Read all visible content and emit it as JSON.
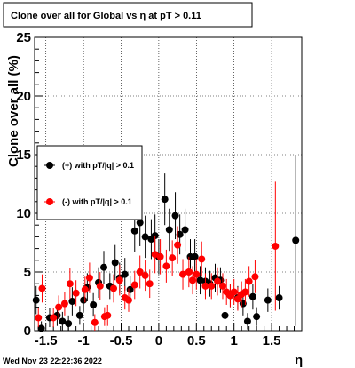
{
  "title": "Clone  over all for Global vs  η at pT > 0.11",
  "timestamp": "Wed Nov 23 22:22:36 2022",
  "chart_data": {
    "type": "scatter",
    "title": "Clone  over all for Global vs  η at pT > 0.11",
    "xlabel": "η",
    "ylabel": "Clone  over all (%)",
    "xlim": [
      -1.65,
      1.9
    ],
    "ylim": [
      0,
      25
    ],
    "x_ticks": [
      -1.5,
      -1,
      -0.5,
      0,
      0.5,
      1,
      1.5
    ],
    "x_tick_labels": [
      "-1.5",
      "-1",
      "-0.5",
      "0",
      "0.5",
      "1",
      "1.5"
    ],
    "y_ticks": [
      0,
      5,
      10,
      15,
      20,
      25
    ],
    "y_tick_labels": [
      "0",
      "5",
      "10",
      "15",
      "20",
      "25"
    ],
    "grid": true,
    "legend_position": "left-middle",
    "series": [
      {
        "name": "(+) with pT/|q| > 0.1",
        "color": "#000000",
        "points": [
          {
            "x": -1.63,
            "y": 2.6,
            "err": 1.2
          },
          {
            "x": -1.56,
            "y": 0.2,
            "err": 0.6
          },
          {
            "x": -1.45,
            "y": 1.1,
            "err": 0.8
          },
          {
            "x": -1.35,
            "y": 1.3,
            "err": 0.9
          },
          {
            "x": -1.28,
            "y": 0.8,
            "err": 0.8
          },
          {
            "x": -1.2,
            "y": 0.6,
            "err": 0.7
          },
          {
            "x": -1.15,
            "y": 2.5,
            "err": 1.2
          },
          {
            "x": -1.05,
            "y": 1.3,
            "err": 0.8
          },
          {
            "x": -1.0,
            "y": 2.6,
            "err": 1.0
          },
          {
            "x": -0.95,
            "y": 3.7,
            "err": 1.2
          },
          {
            "x": -0.87,
            "y": 2.2,
            "err": 1.0
          },
          {
            "x": -0.8,
            "y": 4.1,
            "err": 1.3
          },
          {
            "x": -0.73,
            "y": 5.4,
            "err": 1.4
          },
          {
            "x": -0.65,
            "y": 3.8,
            "err": 1.1
          },
          {
            "x": -0.58,
            "y": 5.8,
            "err": 1.5
          },
          {
            "x": -0.52,
            "y": 4.5,
            "err": 1.3
          },
          {
            "x": -0.45,
            "y": 4.8,
            "err": 1.4
          },
          {
            "x": -0.38,
            "y": 3.5,
            "err": 1.2
          },
          {
            "x": -0.32,
            "y": 8.5,
            "err": 1.8
          },
          {
            "x": -0.25,
            "y": 9.2,
            "err": 2.0
          },
          {
            "x": -0.18,
            "y": 8.0,
            "err": 1.8
          },
          {
            "x": -0.1,
            "y": 7.8,
            "err": 1.7
          },
          {
            "x": -0.05,
            "y": 8.1,
            "err": 1.8
          },
          {
            "x": 0.0,
            "y": 6.3,
            "err": 1.5
          },
          {
            "x": 0.08,
            "y": 11.2,
            "err": 2.2
          },
          {
            "x": 0.14,
            "y": 8.6,
            "err": 1.8
          },
          {
            "x": 0.22,
            "y": 9.8,
            "err": 2.0
          },
          {
            "x": 0.28,
            "y": 8.2,
            "err": 1.7
          },
          {
            "x": 0.35,
            "y": 8.6,
            "err": 1.8
          },
          {
            "x": 0.42,
            "y": 6.3,
            "err": 1.5
          },
          {
            "x": 0.48,
            "y": 6.3,
            "err": 1.5
          },
          {
            "x": 0.55,
            "y": 4.3,
            "err": 1.2
          },
          {
            "x": 0.62,
            "y": 4.2,
            "err": 1.2
          },
          {
            "x": 0.68,
            "y": 4.0,
            "err": 1.1
          },
          {
            "x": 0.75,
            "y": 4.5,
            "err": 1.2
          },
          {
            "x": 0.82,
            "y": 4.3,
            "err": 1.1
          },
          {
            "x": 0.88,
            "y": 1.3,
            "err": 0.9
          },
          {
            "x": 0.95,
            "y": 3.0,
            "err": 1.0
          },
          {
            "x": 1.05,
            "y": 2.8,
            "err": 1.0
          },
          {
            "x": 1.12,
            "y": 2.3,
            "err": 1.0
          },
          {
            "x": 1.18,
            "y": 0.8,
            "err": 0.7
          },
          {
            "x": 1.25,
            "y": 2.9,
            "err": 1.1
          },
          {
            "x": 1.3,
            "y": 1.2,
            "err": 0.8
          },
          {
            "x": 1.45,
            "y": 2.6,
            "err": 1.0
          },
          {
            "x": 1.6,
            "y": 2.8,
            "err": 1.0
          },
          {
            "x": 1.82,
            "y": 7.7,
            "err": 7.3
          }
        ]
      },
      {
        "name": "(-) with pT/|q| > 0.1",
        "color": "#ff0000",
        "points": [
          {
            "x": -1.6,
            "y": 1.1,
            "err": 0.8
          },
          {
            "x": -1.55,
            "y": 3.6,
            "err": 1.2
          },
          {
            "x": -1.4,
            "y": 1.1,
            "err": 0.8
          },
          {
            "x": -1.33,
            "y": 2.0,
            "err": 1.0
          },
          {
            "x": -1.25,
            "y": 2.3,
            "err": 1.0
          },
          {
            "x": -1.18,
            "y": 4.0,
            "err": 1.3
          },
          {
            "x": -1.1,
            "y": 3.2,
            "err": 1.1
          },
          {
            "x": -0.98,
            "y": 3.5,
            "err": 1.1
          },
          {
            "x": -0.92,
            "y": 4.5,
            "err": 1.3
          },
          {
            "x": -0.85,
            "y": 0.7,
            "err": 0.7
          },
          {
            "x": -0.78,
            "y": 3.8,
            "err": 1.2
          },
          {
            "x": -0.72,
            "y": 1.2,
            "err": 0.8
          },
          {
            "x": -0.68,
            "y": 1.3,
            "err": 0.9
          },
          {
            "x": -0.6,
            "y": 3.6,
            "err": 1.2
          },
          {
            "x": -0.52,
            "y": 4.3,
            "err": 1.3
          },
          {
            "x": -0.45,
            "y": 2.8,
            "err": 1.0
          },
          {
            "x": -0.4,
            "y": 2.6,
            "err": 1.0
          },
          {
            "x": -0.32,
            "y": 3.9,
            "err": 1.2
          },
          {
            "x": -0.25,
            "y": 5.0,
            "err": 1.4
          },
          {
            "x": -0.18,
            "y": 4.7,
            "err": 1.3
          },
          {
            "x": -0.12,
            "y": 4.0,
            "err": 1.2
          },
          {
            "x": -0.05,
            "y": 6.5,
            "err": 1.6
          },
          {
            "x": 0.02,
            "y": 6.3,
            "err": 1.5
          },
          {
            "x": 0.1,
            "y": 5.5,
            "err": 1.4
          },
          {
            "x": 0.18,
            "y": 6.2,
            "err": 1.5
          },
          {
            "x": 0.25,
            "y": 7.3,
            "err": 1.6
          },
          {
            "x": 0.32,
            "y": 4.8,
            "err": 1.3
          },
          {
            "x": 0.4,
            "y": 5.0,
            "err": 1.3
          },
          {
            "x": 0.45,
            "y": 4.3,
            "err": 1.2
          },
          {
            "x": 0.5,
            "y": 4.8,
            "err": 1.3
          },
          {
            "x": 0.57,
            "y": 6.1,
            "err": 1.5
          },
          {
            "x": 0.62,
            "y": 3.8,
            "err": 1.1
          },
          {
            "x": 0.7,
            "y": 3.8,
            "err": 1.1
          },
          {
            "x": 0.78,
            "y": 4.2,
            "err": 1.2
          },
          {
            "x": 0.85,
            "y": 3.8,
            "err": 1.1
          },
          {
            "x": 0.9,
            "y": 3.3,
            "err": 1.1
          },
          {
            "x": 0.95,
            "y": 3.0,
            "err": 1.0
          },
          {
            "x": 1.0,
            "y": 3.3,
            "err": 1.1
          },
          {
            "x": 1.05,
            "y": 2.7,
            "err": 1.0
          },
          {
            "x": 1.1,
            "y": 3.1,
            "err": 1.1
          },
          {
            "x": 1.15,
            "y": 3.3,
            "err": 1.1
          },
          {
            "x": 1.2,
            "y": 4.2,
            "err": 1.3
          },
          {
            "x": 1.28,
            "y": 4.6,
            "err": 1.4
          },
          {
            "x": 1.55,
            "y": 7.2,
            "err": 5.5
          }
        ]
      }
    ]
  }
}
